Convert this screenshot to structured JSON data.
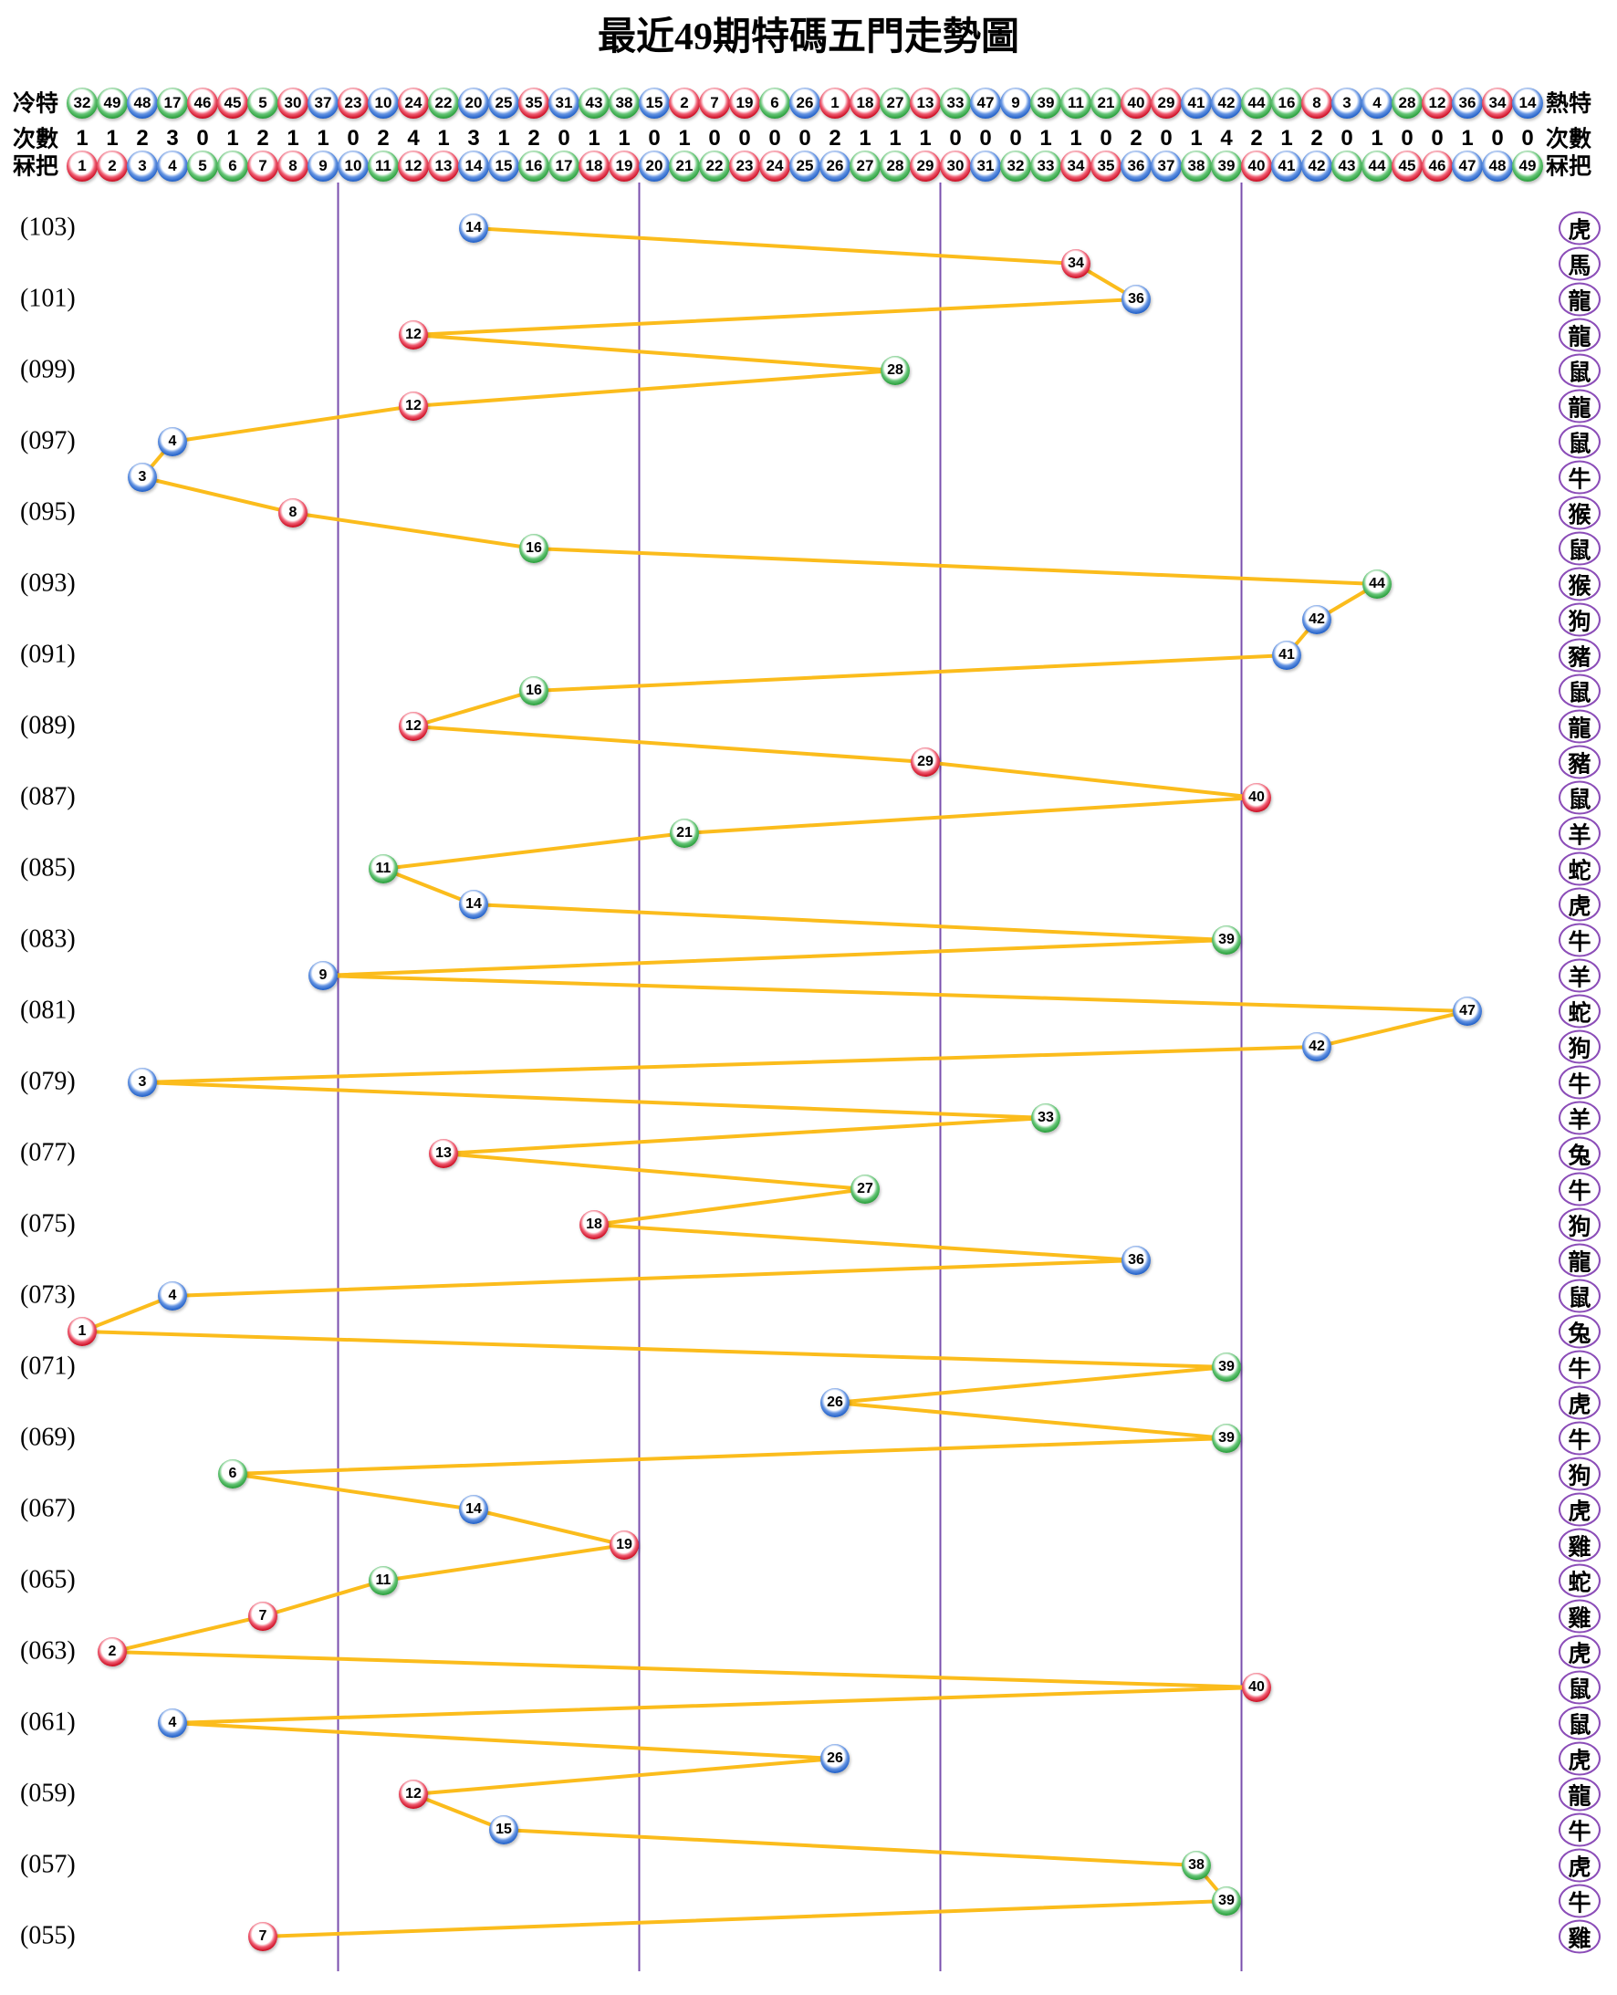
{
  "title": "最近49期特碼五門走勢圖",
  "header": {
    "left_labels": {
      "row1": "冷特",
      "row2": "次數",
      "row3": "冧把"
    },
    "right_labels": {
      "row1": "熱特",
      "row2": "次數",
      "row3": "冧把"
    },
    "cold_to_hot": [
      32,
      49,
      48,
      17,
      46,
      45,
      5,
      30,
      37,
      23,
      10,
      24,
      22,
      20,
      25,
      35,
      31,
      43,
      38,
      15,
      2,
      7,
      19,
      6,
      26,
      1,
      18,
      27,
      13,
      33,
      47,
      9,
      39,
      11,
      21,
      40,
      29,
      41,
      42,
      44,
      16,
      8,
      3,
      4,
      28,
      12,
      36,
      34,
      14
    ],
    "counts": [
      1,
      1,
      2,
      3,
      0,
      1,
      2,
      1,
      1,
      0,
      2,
      4,
      1,
      3,
      1,
      2,
      0,
      1,
      1,
      0,
      1,
      0,
      0,
      0,
      0,
      2,
      1,
      1,
      1,
      0,
      0,
      0,
      1,
      1,
      0,
      2,
      0,
      1,
      4,
      2,
      1,
      2,
      0,
      1,
      0,
      0,
      1,
      0,
      0
    ],
    "numbers": [
      1,
      2,
      3,
      4,
      5,
      6,
      7,
      8,
      9,
      10,
      11,
      12,
      13,
      14,
      15,
      16,
      17,
      18,
      19,
      20,
      21,
      22,
      23,
      24,
      25,
      26,
      27,
      28,
      29,
      30,
      31,
      32,
      33,
      34,
      35,
      36,
      37,
      38,
      39,
      40,
      41,
      42,
      43,
      44,
      45,
      46,
      47,
      48,
      49
    ]
  },
  "chart_data": {
    "type": "line",
    "title": "最近49期特碼五門走勢圖",
    "x_range": [
      1,
      49
    ],
    "gates": [
      [
        1,
        9
      ],
      [
        10,
        19
      ],
      [
        20,
        29
      ],
      [
        30,
        39
      ],
      [
        40,
        49
      ]
    ],
    "grid": "vertical gate dividers only",
    "y_axis": "period numbers 103 (top) down to 55 (bottom), labels every 2nd row",
    "series": [
      {
        "period": 103,
        "label": "(103)",
        "number": 14,
        "color": "blue",
        "zodiac": "虎"
      },
      {
        "period": 102,
        "label": "",
        "number": 34,
        "color": "red",
        "zodiac": "馬"
      },
      {
        "period": 101,
        "label": "(101)",
        "number": 36,
        "color": "blue",
        "zodiac": "龍"
      },
      {
        "period": 100,
        "label": "",
        "number": 12,
        "color": "red",
        "zodiac": "龍"
      },
      {
        "period": 99,
        "label": "(099)",
        "number": 28,
        "color": "green",
        "zodiac": "鼠"
      },
      {
        "period": 98,
        "label": "",
        "number": 12,
        "color": "red",
        "zodiac": "龍"
      },
      {
        "period": 97,
        "label": "(097)",
        "number": 4,
        "color": "blue",
        "zodiac": "鼠"
      },
      {
        "period": 96,
        "label": "",
        "number": 3,
        "color": "blue",
        "zodiac": "牛"
      },
      {
        "period": 95,
        "label": "(095)",
        "number": 8,
        "color": "red",
        "zodiac": "猴"
      },
      {
        "period": 94,
        "label": "",
        "number": 16,
        "color": "green",
        "zodiac": "鼠"
      },
      {
        "period": 93,
        "label": "(093)",
        "number": 44,
        "color": "green",
        "zodiac": "猴"
      },
      {
        "period": 92,
        "label": "",
        "number": 42,
        "color": "blue",
        "zodiac": "狗"
      },
      {
        "period": 91,
        "label": "(091)",
        "number": 41,
        "color": "blue",
        "zodiac": "豬"
      },
      {
        "period": 90,
        "label": "",
        "number": 16,
        "color": "green",
        "zodiac": "鼠"
      },
      {
        "period": 89,
        "label": "(089)",
        "number": 12,
        "color": "red",
        "zodiac": "龍"
      },
      {
        "period": 88,
        "label": "",
        "number": 29,
        "color": "red",
        "zodiac": "豬"
      },
      {
        "period": 87,
        "label": "(087)",
        "number": 40,
        "color": "red",
        "zodiac": "鼠"
      },
      {
        "period": 86,
        "label": "",
        "number": 21,
        "color": "green",
        "zodiac": "羊"
      },
      {
        "period": 85,
        "label": "(085)",
        "number": 11,
        "color": "green",
        "zodiac": "蛇"
      },
      {
        "period": 84,
        "label": "",
        "number": 14,
        "color": "blue",
        "zodiac": "虎"
      },
      {
        "period": 83,
        "label": "(083)",
        "number": 39,
        "color": "green",
        "zodiac": "牛"
      },
      {
        "period": 82,
        "label": "",
        "number": 9,
        "color": "blue",
        "zodiac": "羊"
      },
      {
        "period": 81,
        "label": "(081)",
        "number": 47,
        "color": "blue",
        "zodiac": "蛇"
      },
      {
        "period": 80,
        "label": "",
        "number": 42,
        "color": "blue",
        "zodiac": "狗"
      },
      {
        "period": 79,
        "label": "(079)",
        "number": 3,
        "color": "blue",
        "zodiac": "牛"
      },
      {
        "period": 78,
        "label": "",
        "number": 33,
        "color": "green",
        "zodiac": "羊"
      },
      {
        "period": 77,
        "label": "(077)",
        "number": 13,
        "color": "red",
        "zodiac": "兔"
      },
      {
        "period": 76,
        "label": "",
        "number": 27,
        "color": "green",
        "zodiac": "牛"
      },
      {
        "period": 75,
        "label": "(075)",
        "number": 18,
        "color": "red",
        "zodiac": "狗"
      },
      {
        "period": 74,
        "label": "",
        "number": 36,
        "color": "blue",
        "zodiac": "龍"
      },
      {
        "period": 73,
        "label": "(073)",
        "number": 4,
        "color": "blue",
        "zodiac": "鼠"
      },
      {
        "period": 72,
        "label": "",
        "number": 1,
        "color": "red",
        "zodiac": "兔"
      },
      {
        "period": 71,
        "label": "(071)",
        "number": 39,
        "color": "green",
        "zodiac": "牛"
      },
      {
        "period": 70,
        "label": "",
        "number": 26,
        "color": "blue",
        "zodiac": "虎"
      },
      {
        "period": 69,
        "label": "(069)",
        "number": 39,
        "color": "green",
        "zodiac": "牛"
      },
      {
        "period": 68,
        "label": "",
        "number": 6,
        "color": "green",
        "zodiac": "狗"
      },
      {
        "period": 67,
        "label": "(067)",
        "number": 14,
        "color": "blue",
        "zodiac": "虎"
      },
      {
        "period": 66,
        "label": "",
        "number": 19,
        "color": "red",
        "zodiac": "雞"
      },
      {
        "period": 65,
        "label": "(065)",
        "number": 11,
        "color": "green",
        "zodiac": "蛇"
      },
      {
        "period": 64,
        "label": "",
        "number": 7,
        "color": "red",
        "zodiac": "雞"
      },
      {
        "period": 63,
        "label": "(063)",
        "number": 2,
        "color": "red",
        "zodiac": "虎"
      },
      {
        "period": 62,
        "label": "",
        "number": 40,
        "color": "red",
        "zodiac": "鼠"
      },
      {
        "period": 61,
        "label": "(061)",
        "number": 4,
        "color": "blue",
        "zodiac": "鼠"
      },
      {
        "period": 60,
        "label": "",
        "number": 26,
        "color": "blue",
        "zodiac": "虎"
      },
      {
        "period": 59,
        "label": "(059)",
        "number": 12,
        "color": "red",
        "zodiac": "龍"
      },
      {
        "period": 58,
        "label": "",
        "number": 15,
        "color": "blue",
        "zodiac": "牛"
      },
      {
        "period": 57,
        "label": "(057)",
        "number": 38,
        "color": "green",
        "zodiac": "虎"
      },
      {
        "period": 56,
        "label": "",
        "number": 39,
        "color": "green",
        "zodiac": "牛"
      },
      {
        "period": 55,
        "label": "(055)",
        "number": 7,
        "color": "red",
        "zodiac": "雞"
      }
    ]
  },
  "ball_color_groups": {
    "red": [
      1,
      2,
      7,
      8,
      12,
      13,
      18,
      19,
      23,
      24,
      29,
      30,
      34,
      35,
      40,
      45,
      46
    ],
    "blue": [
      3,
      4,
      9,
      10,
      14,
      15,
      20,
      25,
      26,
      31,
      36,
      37,
      41,
      42,
      47,
      48
    ],
    "green": [
      5,
      6,
      11,
      16,
      17,
      21,
      22,
      27,
      28,
      32,
      33,
      38,
      39,
      43,
      44,
      49
    ]
  },
  "colors": {
    "trend_line": "#FBBC1C",
    "gate_divider": "#7A4FAE",
    "zodiac_ring": "#8B4DB8",
    "ball_red": "#CE1126",
    "ball_blue": "#2563C9",
    "ball_green": "#2DA13F",
    "text": "#000000",
    "background": "#FFFFFF"
  }
}
